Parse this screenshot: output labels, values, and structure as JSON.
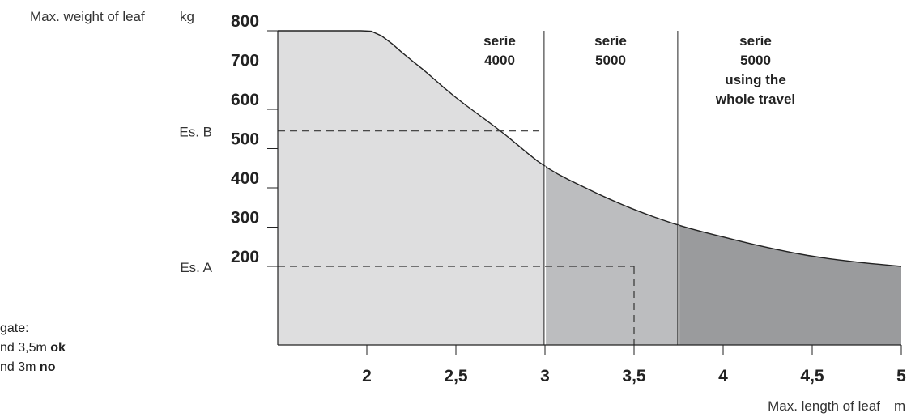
{
  "chart_data": {
    "type": "area",
    "title": "",
    "xlabel": "Max. length of leaf",
    "xunit": "m",
    "ylabel": "Max. weight of leaf",
    "yunit": "kg",
    "xlim": [
      1.5,
      5
    ],
    "ylim": [
      0,
      800
    ],
    "x_ticks": [
      {
        "value": 2,
        "label": "2"
      },
      {
        "value": 2.5,
        "label": "2,5"
      },
      {
        "value": 3,
        "label": "3"
      },
      {
        "value": 3.5,
        "label": "3,5"
      },
      {
        "value": 4,
        "label": "4"
      },
      {
        "value": 4.5,
        "label": "4,5"
      },
      {
        "value": 5,
        "label": "5"
      }
    ],
    "y_ticks": [
      {
        "value": 200,
        "label": "200"
      },
      {
        "value": 300,
        "label": "300"
      },
      {
        "value": 400,
        "label": "400"
      },
      {
        "value": 500,
        "label": "500"
      },
      {
        "value": 600,
        "label": "600"
      },
      {
        "value": 700,
        "label": "700"
      },
      {
        "value": 800,
        "label": "800"
      }
    ],
    "curve": {
      "x": [
        1.5,
        2.0,
        2.25,
        2.5,
        2.75,
        3.0,
        3.25,
        3.5,
        3.75,
        4.0,
        4.25,
        4.5,
        4.75,
        5.0
      ],
      "y": [
        800,
        800,
        725,
        630,
        545,
        455,
        395,
        345,
        305,
        275,
        248,
        226,
        211,
        200
      ]
    },
    "regions": [
      {
        "name": "serie 4000",
        "label_lines": [
          "serie",
          "4000"
        ],
        "x_from": 1.5,
        "x_to": 3.0,
        "color": "#dededf"
      },
      {
        "name": "serie 5000",
        "label_lines": [
          "serie",
          "5000"
        ],
        "x_from": 3.0,
        "x_to": 3.75,
        "color": "#bcbdbf"
      },
      {
        "name": "serie 5000 using the whole travel",
        "label_lines": [
          "serie",
          "5000",
          "using the",
          "whole travel"
        ],
        "x_from": 3.75,
        "x_to": 5.0,
        "color": "#9a9b9d"
      }
    ],
    "dividers": [
      3.0,
      3.75
    ],
    "examples": [
      {
        "label": "Es. A",
        "x": 3.5,
        "y": 200
      },
      {
        "label": "Es. B",
        "x": 3.0,
        "y": 545
      }
    ],
    "grid": false,
    "legend": "none"
  },
  "notes": [
    {
      "text": " gate:",
      "bold": ""
    },
    {
      "text": "nd 3,5m ",
      "bold": "ok"
    },
    {
      "text": "nd 3m ",
      "bold": "no"
    }
  ],
  "colors": {
    "axis": "#222222",
    "dash": "#333333"
  }
}
